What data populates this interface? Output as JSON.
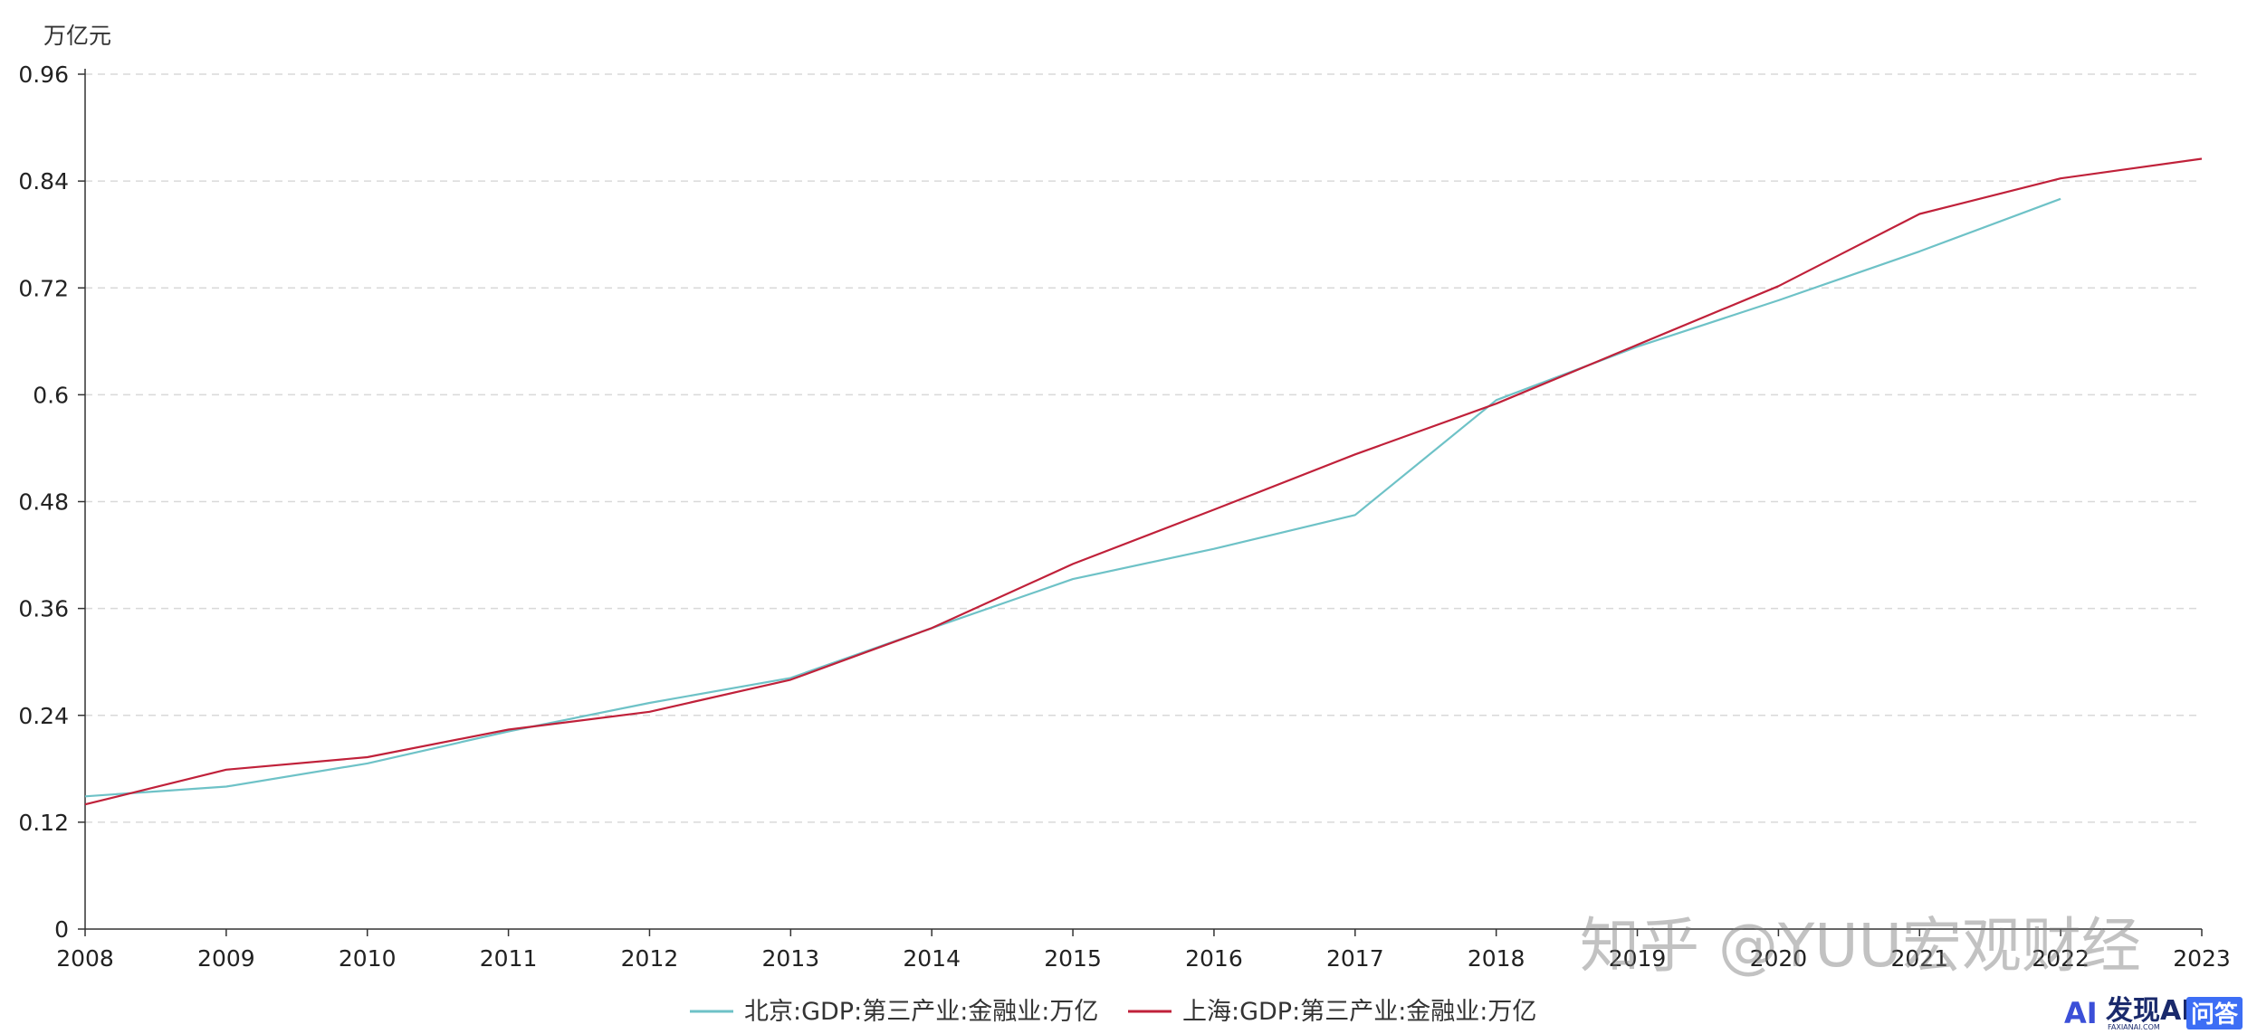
{
  "chart_data": {
    "type": "line",
    "y_unit": "万亿元",
    "x": [
      "2008",
      "2009",
      "2010",
      "2011",
      "2012",
      "2013",
      "2014",
      "2015",
      "2016",
      "2017",
      "2018",
      "2019",
      "2020",
      "2021",
      "2022",
      "2023"
    ],
    "ylim": [
      0,
      0.96
    ],
    "yticks": [
      "0",
      "0.12",
      "0.24",
      "0.36",
      "0.48",
      "0.6",
      "0.72",
      "0.84",
      "0.96"
    ],
    "grid": true,
    "legend_position": "bottom",
    "series": [
      {
        "name": "北京:GDP:第三产业:金融业:万亿",
        "color": "#6ec2c7",
        "values": [
          0.149,
          0.16,
          0.186,
          0.222,
          0.254,
          0.282,
          0.338,
          0.393,
          0.427,
          0.465,
          0.594,
          0.654,
          0.706,
          0.761,
          0.82,
          null
        ]
      },
      {
        "name": "上海:GDP:第三产业:金融业:万亿",
        "color": "#c0213a",
        "values": [
          0.14,
          0.179,
          0.193,
          0.224,
          0.244,
          0.28,
          0.338,
          0.41,
          0.471,
          0.533,
          0.59,
          0.656,
          0.722,
          0.803,
          0.843,
          0.865
        ]
      }
    ]
  },
  "watermark": {
    "text": "知乎 @YUU宏观财经"
  },
  "brand": {
    "logo_text": "AI",
    "name": "发现AI",
    "domain": "FAXIANAI.COM",
    "badge": "问答"
  }
}
